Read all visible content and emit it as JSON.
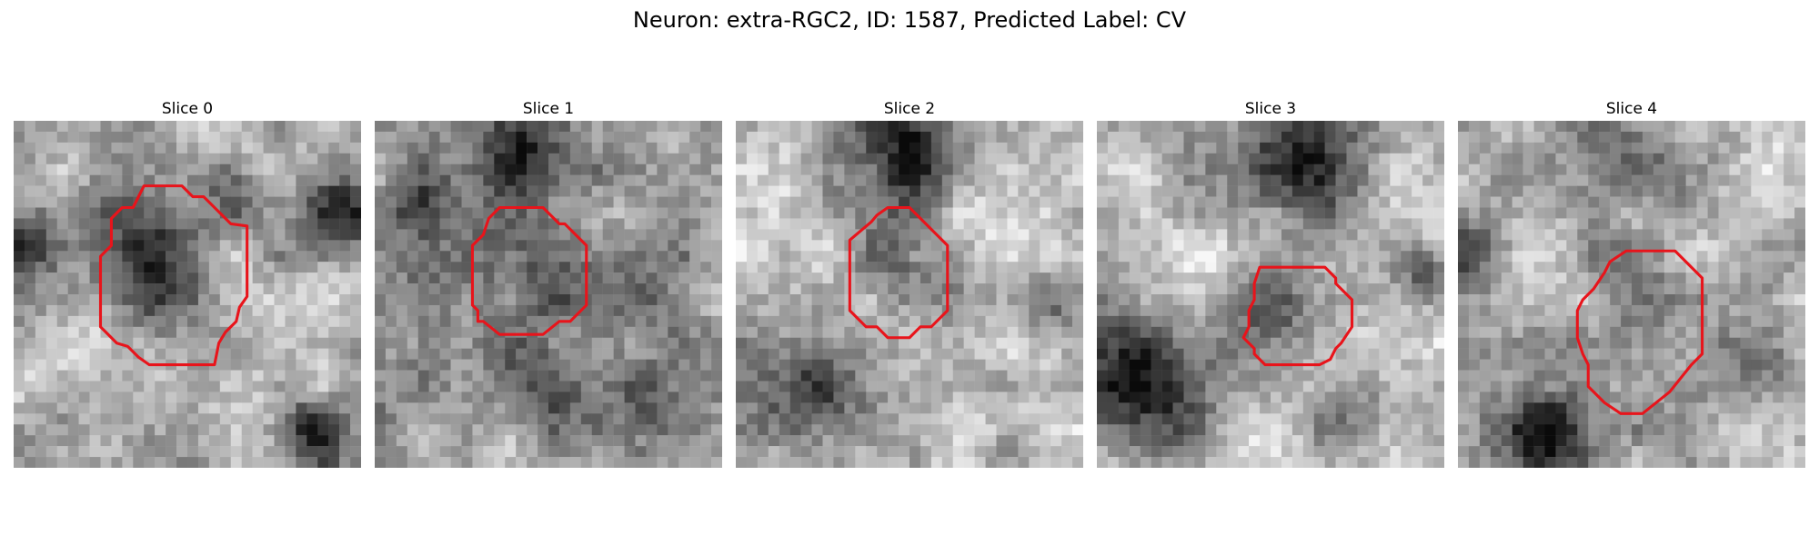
{
  "figure": {
    "title": "Neuron: extra-RGC2, ID: 1587, Predicted Label: CV"
  },
  "slices": [
    {
      "title": "Slice 0"
    },
    {
      "title": "Slice 1"
    },
    {
      "title": "Slice 2"
    },
    {
      "title": "Slice 3"
    },
    {
      "title": "Slice 4"
    }
  ],
  "colors": {
    "outline": "#e8141b",
    "background": "#ffffff"
  }
}
